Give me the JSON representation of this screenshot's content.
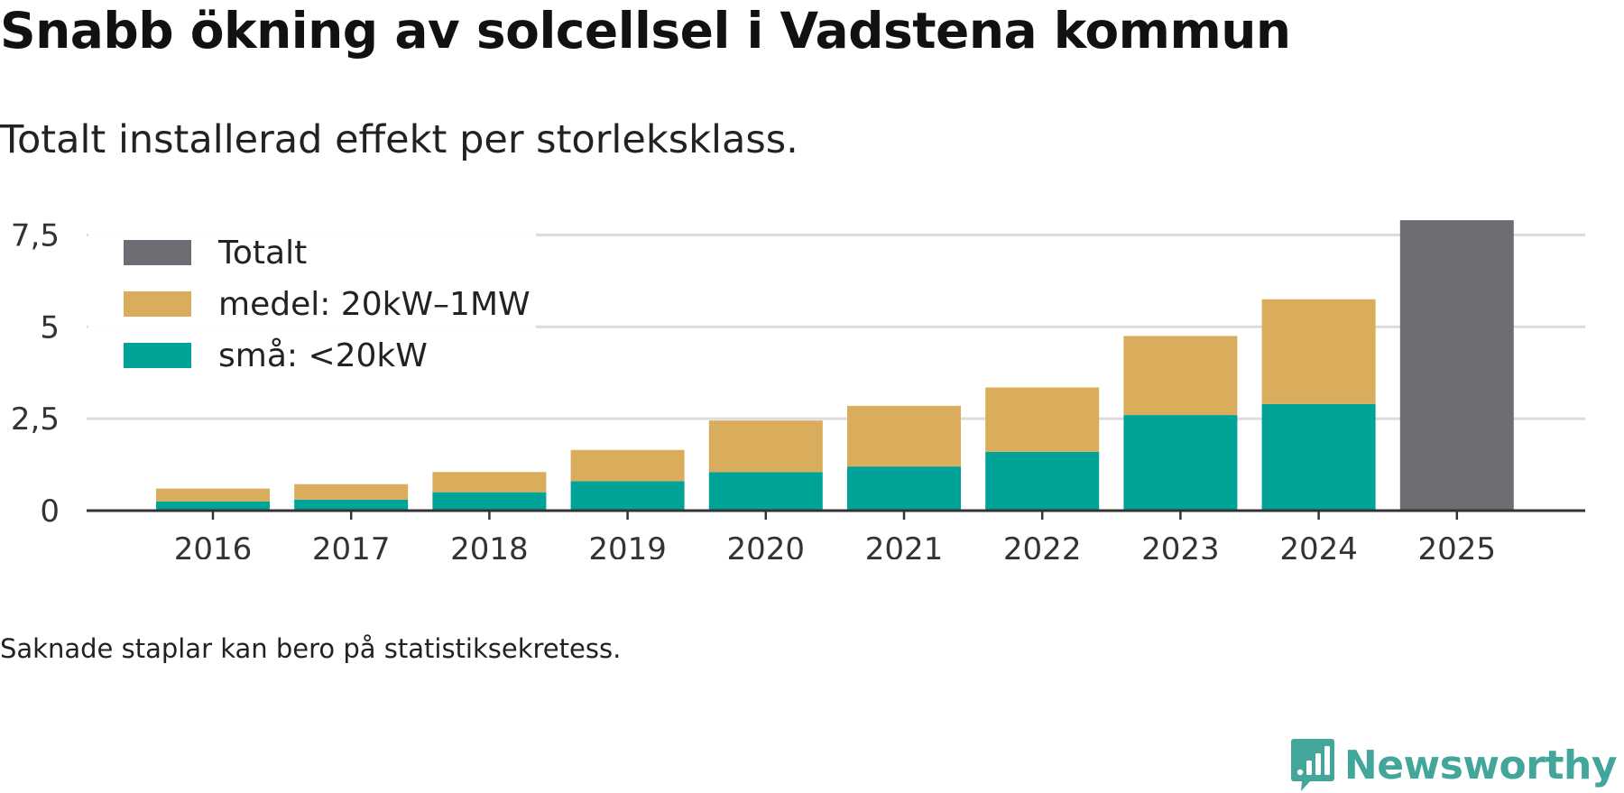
{
  "title": "Snabb ökning av solcellsel i Vadstena kommun",
  "subtitle": "Totalt installerad effekt per storleksklass.",
  "note": "Saknade staplar kan bero på statistiksekretess.",
  "brand": "Newsworthy",
  "chart_data": {
    "type": "bar",
    "stacked": true,
    "categories": [
      "2016",
      "2017",
      "2018",
      "2019",
      "2020",
      "2021",
      "2022",
      "2023",
      "2024",
      "2025"
    ],
    "series": [
      {
        "name": "små: <20kW",
        "key": "sma",
        "color": "#00a398",
        "values": [
          0.25,
          0.3,
          0.5,
          0.8,
          1.05,
          1.2,
          1.6,
          2.6,
          2.9,
          null
        ]
      },
      {
        "name": "medel: 20kW–1MW",
        "key": "medel",
        "color": "#d9ad5b",
        "values": [
          0.35,
          0.42,
          0.55,
          0.85,
          1.4,
          1.65,
          1.75,
          2.15,
          2.85,
          null
        ]
      },
      {
        "name": "Totalt",
        "key": "totalt",
        "color": "#6e6d74",
        "values": [
          null,
          null,
          null,
          null,
          null,
          null,
          null,
          null,
          null,
          7.9
        ]
      }
    ],
    "legend": [
      "Totalt",
      "medel: 20kW–1MW",
      "små: <20kW"
    ],
    "yticks": [
      0,
      2.5,
      5,
      7.5
    ],
    "ytick_labels": [
      "0",
      "2,5",
      "5",
      "7,5"
    ],
    "ylim": [
      0,
      8
    ],
    "xlabel": "",
    "ylabel": "",
    "legend_position": "top-left",
    "grid": true
  }
}
